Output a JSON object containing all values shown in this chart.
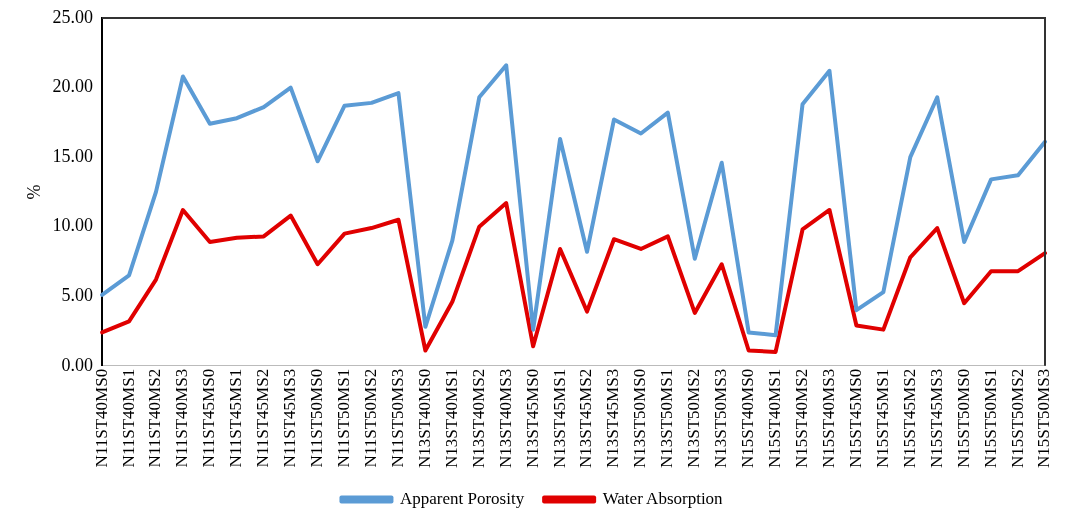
{
  "chart_data": {
    "type": "line",
    "ylabel": "%",
    "categories": [
      "N11ST40MS0",
      "N11ST40MS1",
      "N11ST40MS2",
      "N11ST40MS3",
      "N11ST45MS0",
      "N11ST45MS1",
      "N11ST45MS2",
      "N11ST45MS3",
      "N11ST50MS0",
      "N11ST50MS1",
      "N11ST50MS2",
      "N11ST50MS3",
      "N13ST40MS0",
      "N13ST40MS1",
      "N13ST40MS2",
      "N13ST40MS3",
      "N13ST45MS0",
      "N13ST45MS1",
      "N13ST45MS2",
      "N13ST45MS3",
      "N13ST50MS0",
      "N13ST50MS1",
      "N13ST50MS2",
      "N13ST50MS3",
      "N15ST40MS0",
      "N15ST40MS1",
      "N15ST40MS2",
      "N15ST40MS3",
      "N15ST45MS0",
      "N15ST45MS1",
      "N15ST45MS2",
      "N15ST45MS3",
      "N15ST50MS0",
      "N15ST50MS1",
      "N15ST50MS2",
      "N15ST50MS3"
    ],
    "series": [
      {
        "name": "Apparent Porosity",
        "color": "#5b9bd5",
        "values": [
          5.1,
          6.5,
          12.5,
          20.8,
          17.4,
          17.8,
          18.6,
          20.0,
          14.7,
          18.7,
          18.9,
          19.6,
          2.8,
          9.0,
          19.3,
          21.6,
          2.6,
          16.3,
          8.2,
          17.7,
          16.7,
          18.2,
          7.7,
          14.6,
          2.4,
          2.2,
          18.8,
          21.2,
          4.0,
          5.3,
          15.0,
          19.3,
          8.9,
          13.4,
          13.7,
          16.1
        ]
      },
      {
        "name": "Water Absorption",
        "color": "#e00000",
        "values": [
          2.4,
          3.2,
          6.2,
          11.2,
          8.9,
          9.2,
          9.3,
          10.8,
          7.3,
          9.5,
          9.9,
          10.5,
          1.1,
          4.6,
          10.0,
          11.7,
          1.4,
          8.4,
          3.9,
          9.1,
          8.4,
          9.3,
          3.8,
          7.3,
          1.1,
          1.0,
          9.8,
          11.2,
          2.9,
          2.6,
          7.8,
          9.9,
          4.5,
          6.8,
          6.8,
          8.1
        ]
      }
    ],
    "ylim": [
      0,
      25
    ],
    "yticks": [
      {
        "value": 0,
        "label": "0.00"
      },
      {
        "value": 5,
        "label": "5.00"
      },
      {
        "value": 10,
        "label": "10.00"
      },
      {
        "value": 15,
        "label": "15.00"
      },
      {
        "value": 20,
        "label": "20.00"
      },
      {
        "value": 25,
        "label": "25.00"
      }
    ],
    "grid": false,
    "legend": "bottom",
    "marker": "none",
    "line_style": "solid"
  }
}
